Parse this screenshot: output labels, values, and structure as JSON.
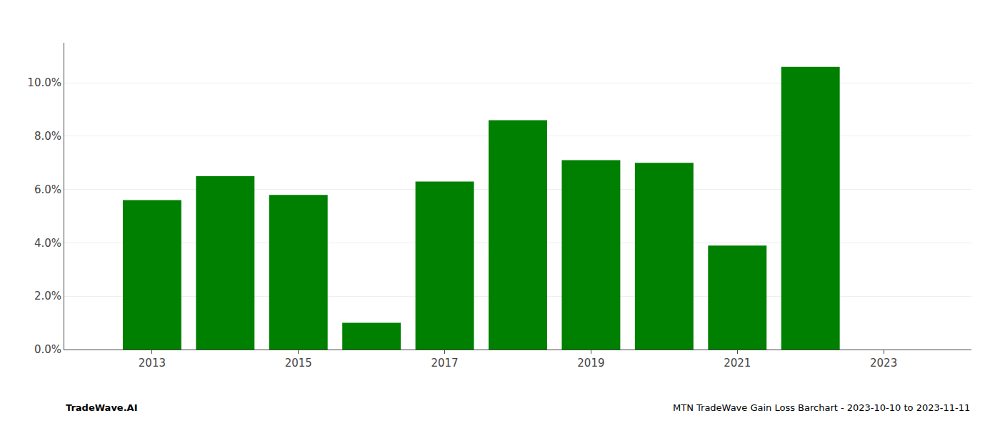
{
  "chart_data": {
    "type": "bar",
    "x": [
      2013,
      2014,
      2015,
      2016,
      2017,
      2018,
      2019,
      2020,
      2021,
      2022
    ],
    "values": [
      0.056,
      0.065,
      0.058,
      0.01,
      0.063,
      0.086,
      0.071,
      0.07,
      0.039,
      0.106
    ],
    "color": "#008000",
    "xlim": [
      2011.8,
      2024.2
    ],
    "xticks": [
      2013,
      2015,
      2017,
      2019,
      2021,
      2023
    ],
    "ylim": [
      0,
      0.115
    ],
    "yticks": [
      {
        "value": 0.0,
        "label": "0.0%"
      },
      {
        "value": 0.02,
        "label": "2.0%"
      },
      {
        "value": 0.04,
        "label": "4.0%"
      },
      {
        "value": 0.06,
        "label": "6.0%"
      },
      {
        "value": 0.08,
        "label": "8.0%"
      },
      {
        "value": 0.1,
        "label": "10.0%"
      }
    ],
    "grid": true,
    "annotations": [
      "TradeWave.AI",
      "MTN TradeWave Gain Loss Barchart - 2023-10-10 to 2023-11-11"
    ]
  }
}
